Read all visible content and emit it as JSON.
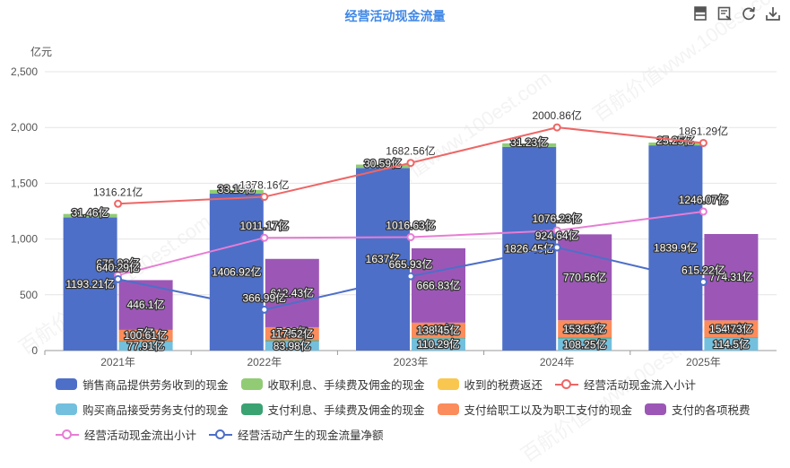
{
  "title": "经营活动现金流量",
  "toolbar": [
    "table-view-icon",
    "data-view-icon",
    "restore-icon",
    "download-icon"
  ],
  "watermark": "百航价值www.100est.com",
  "chart_data": {
    "type": "bar",
    "y_unit_label": "亿元",
    "ylim": [
      0,
      2500
    ],
    "y_ticks": [
      "0",
      "500",
      "1,000",
      "1,500",
      "2,000",
      "2,500"
    ],
    "categories": [
      "2021年",
      "2022年",
      "2023年",
      "2024年",
      "2025年"
    ],
    "inflow_stack": [
      {
        "name": "销售商品提供劳务收到的现金",
        "color": "#4e6fc8",
        "values": [
          1193.21,
          1406.92,
          1637.0,
          1826.45,
          1839.9
        ],
        "labels": [
          "1193.21亿",
          "1406.92亿",
          "1637亿",
          "1826.45亿",
          "1839.9亿"
        ]
      },
      {
        "name": "收取利息、手续费及佣金的现金",
        "color": "#91cc75",
        "values": [
          31.46,
          33.19,
          30.59,
          31.23,
          25.25
        ],
        "labels": [
          "31.46亿",
          "33.19亿",
          "30.59亿",
          "31.23亿",
          "25.25亿"
        ]
      },
      {
        "name": "收到的税费返还",
        "color": "#f9c74f",
        "values": [
          0,
          0,
          0,
          0,
          0
        ],
        "labels": [
          "",
          "",
          "",
          "",
          ""
        ]
      }
    ],
    "outflow_stack": [
      {
        "name": "购买商品接受劳务支付的现金",
        "color": "#73c0de",
        "values": [
          77.91,
          83.98,
          110.29,
          108.25,
          114.5
        ],
        "labels": [
          "77.91亿",
          "83.98亿",
          "110.29亿",
          "108.25亿",
          "114.5亿"
        ]
      },
      {
        "name": "支付利息、手续费及佣金的现金",
        "color": "#3ba272",
        "values": [
          7,
          7.92,
          1.43,
          9.706,
          1.41
        ],
        "labels": [
          "7亿",
          "7.92亿",
          "1.43亿",
          "9.706亿",
          "1.41亿"
        ]
      },
      {
        "name": "支付给职工以及为职工支付的现金",
        "color": "#fb8c5b",
        "values": [
          100.61,
          117.52,
          138.45,
          153.53,
          154.73
        ],
        "labels": [
          "100.61亿",
          "117.52亿",
          "138.45亿",
          "153.53亿",
          "154.73亿"
        ]
      },
      {
        "name": "支付的各项税费",
        "color": "#9c57b6",
        "values": [
          446.1,
          612.43,
          666.83,
          770.56,
          774.31
        ],
        "labels": [
          "446.1亿",
          "612.43亿",
          "666.83亿",
          "770.56亿",
          "774.31亿"
        ]
      }
    ],
    "lines": [
      {
        "name": "经营活动现金流入小计",
        "color": "#ee6666",
        "values": [
          1316.21,
          1378.16,
          1682.56,
          2000.86,
          1861.29
        ],
        "labels": [
          "1316.21亿",
          "1378.16亿",
          "1682.56亿",
          "2000.86亿",
          "1861.29亿"
        ]
      },
      {
        "name": "经营活动现金流出小计",
        "color": "#e77dd5",
        "values": [
          675.92,
          1011.17,
          1016.63,
          1076.23,
          1246.07
        ],
        "labels": [
          "675.92亿",
          "1011.17亿",
          "1016.63亿",
          "1076.23亿",
          "1246.07亿"
        ]
      },
      {
        "name": "经营活动产生的现金流量净额",
        "color": "#4e6fc8",
        "values": [
          640.29,
          366.99,
          665.93,
          924.64,
          615.22
        ],
        "labels": [
          "640.29亿",
          "366.99亿",
          "665.93亿",
          "924.64亿",
          "615.22亿"
        ]
      }
    ],
    "grid": true,
    "legend_position": "bottom"
  },
  "legend_rows": [
    [
      {
        "label": "销售商品提供劳务收到的现金",
        "color": "#4e6fc8",
        "kind": "bar"
      },
      {
        "label": "收取利息、手续费及佣金的现金",
        "color": "#91cc75",
        "kind": "bar"
      },
      {
        "label": "收到的税费返还",
        "color": "#f9c74f",
        "kind": "bar"
      },
      {
        "label": "经营活动现金流入小计",
        "color": "#ee6666",
        "kind": "line"
      }
    ],
    [
      {
        "label": "购买商品接受劳务支付的现金",
        "color": "#73c0de",
        "kind": "bar"
      },
      {
        "label": "支付利息、手续费及佣金的现金",
        "color": "#3ba272",
        "kind": "bar"
      },
      {
        "label": "支付给职工以及为职工支付的现金",
        "color": "#fb8c5b",
        "kind": "bar"
      },
      {
        "label": "支付的各项税费",
        "color": "#9c57b6",
        "kind": "bar"
      }
    ],
    [
      {
        "label": "经营活动现金流出小计",
        "color": "#e77dd5",
        "kind": "line"
      },
      {
        "label": "经营活动产生的现金流量净额",
        "color": "#4e6fc8",
        "kind": "line"
      }
    ]
  ]
}
